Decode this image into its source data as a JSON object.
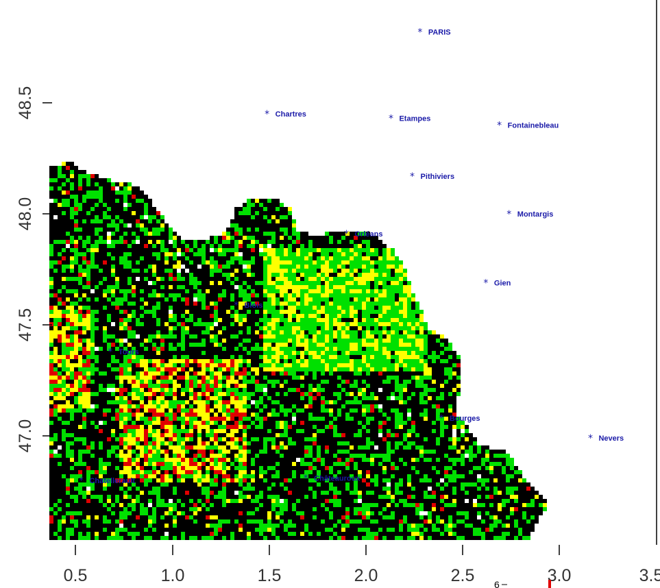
{
  "map": {
    "x_ticks": [
      "0.5",
      "1.0",
      "1.5",
      "2.0",
      "2.5",
      "3.0",
      "3.5"
    ],
    "y_ticks": [
      "48.5",
      "48.0",
      "47.5",
      "47.0"
    ],
    "legend_fragment": "6",
    "colors": {
      "black": "#000000",
      "green": "#00e000",
      "yellow": "#ffff00",
      "red": "#e00000",
      "orange": "#ffa000",
      "city": "#1a1aa8"
    },
    "cities": [
      {
        "name": "PARIS",
        "lon": 2.28,
        "lat": 48.82
      },
      {
        "name": "Chartres",
        "lon": 1.49,
        "lat": 48.45
      },
      {
        "name": "Etampes",
        "lon": 2.13,
        "lat": 48.43
      },
      {
        "name": "Fontainebleau",
        "lon": 2.69,
        "lat": 48.4
      },
      {
        "name": "Pithiviers",
        "lon": 2.24,
        "lat": 48.17
      },
      {
        "name": "Montargis",
        "lon": 2.74,
        "lat": 48.0
      },
      {
        "name": "Orléans",
        "lon": 1.9,
        "lat": 47.91
      },
      {
        "name": "Gien",
        "lon": 2.62,
        "lat": 47.69
      },
      {
        "name": "Blois",
        "lon": 1.33,
        "lat": 47.59
      },
      {
        "name": "Tours",
        "lon": 0.68,
        "lat": 47.38
      },
      {
        "name": "Bourges",
        "lon": 2.39,
        "lat": 47.08
      },
      {
        "name": "Nevers",
        "lon": 3.16,
        "lat": 46.99
      },
      {
        "name": "Châteauroux",
        "lon": 1.69,
        "lat": 46.81
      },
      {
        "name": "Chatellerault",
        "lon": 0.53,
        "lat": 46.8
      }
    ]
  }
}
